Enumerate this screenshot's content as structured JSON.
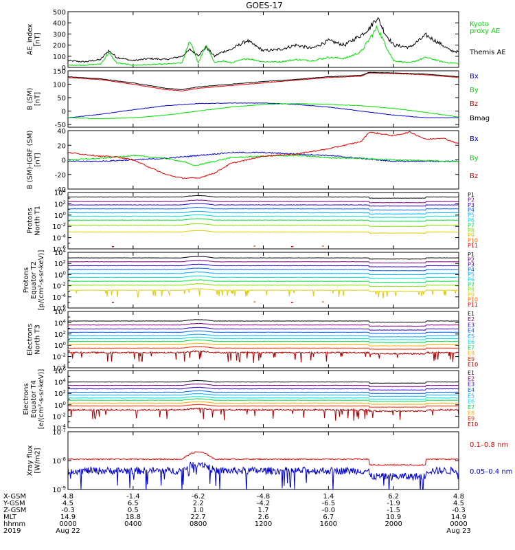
{
  "chart_data": {
    "title": "GOES-17",
    "colors": {
      "black": "#000000",
      "red": "#e00000",
      "green": "#00dd00",
      "blue": "#0000cc",
      "P": [
        "#000000",
        "#7a007a",
        "#2a00cc",
        "#0060ff",
        "#00aaff",
        "#00dddd",
        "#00dd44",
        "#88dd00",
        "#ddcc00",
        "#ff6600",
        "#cc0000"
      ],
      "E": [
        "#000000",
        "#7a007a",
        "#2a00cc",
        "#0060ff",
        "#00aaff",
        "#00dddd",
        "#00dd44",
        "#88dd00",
        "#ffaa00",
        "#ff2200",
        "#aa0000"
      ]
    },
    "panels": [
      {
        "id": "ae",
        "type": "line",
        "ylabel": [
          "AE_index",
          "[nT]"
        ],
        "scale": "linear",
        "ylim": [
          0,
          500
        ],
        "yticks": [
          "500",
          "400",
          "300",
          "200",
          "100",
          "0"
        ],
        "ytick_values": [
          500,
          400,
          300,
          200,
          100,
          0
        ],
        "legend": [
          "Kyoto",
          "proxy AE",
          "Themis AE"
        ],
        "series": [
          {
            "name": "Themis AE",
            "color": "black",
            "x": [
              0,
              1,
              2,
              2.5,
              3,
              4,
              5,
              6,
              7,
              7.5,
              8,
              8.5,
              9,
              9.5,
              10,
              11,
              12,
              13,
              14,
              15,
              16,
              17,
              18,
              18.5,
              19,
              19.5,
              20,
              21,
              22,
              23,
              23.5,
              24
            ],
            "y": [
              60,
              50,
              70,
              150,
              90,
              60,
              80,
              70,
              100,
              160,
              110,
              180,
              100,
              140,
              160,
              240,
              150,
              160,
              200,
              170,
              240,
              200,
              290,
              350,
              450,
              300,
              200,
              180,
              290,
              200,
              150,
              140
            ]
          },
          {
            "name": "Kyoto proxy AE",
            "color": "green",
            "x": [
              0,
              1,
              2,
              2.5,
              3,
              4,
              5,
              6,
              7,
              7.5,
              8,
              8.5,
              9,
              9.5,
              10,
              11,
              12,
              13,
              14,
              15,
              16,
              17,
              18,
              18.5,
              19,
              19.5,
              20,
              21,
              22,
              23,
              23.5,
              24
            ],
            "y": [
              20,
              20,
              30,
              130,
              40,
              20,
              25,
              30,
              40,
              240,
              40,
              200,
              40,
              60,
              40,
              80,
              50,
              50,
              70,
              60,
              90,
              80,
              140,
              250,
              360,
              200,
              60,
              40,
              90,
              50,
              40,
              35
            ]
          }
        ]
      },
      {
        "id": "bsm",
        "type": "line",
        "ylabel": [
          "B (SM)",
          "[nT]"
        ],
        "scale": "linear",
        "ylim": [
          -60,
          150
        ],
        "yticks": [
          "150",
          "100",
          "50",
          "0",
          "-50"
        ],
        "ytick_values": [
          150,
          100,
          50,
          0,
          -50
        ],
        "legend": [
          "Bx",
          "By",
          "Bz",
          "Bmag"
        ],
        "series": [
          {
            "name": "Bx",
            "color": "blue",
            "x": [
              0,
              2,
              4,
              6,
              8,
              10,
              12,
              14,
              16,
              18,
              20,
              22,
              24
            ],
            "y": [
              -25,
              -12,
              5,
              20,
              28,
              30,
              30,
              25,
              15,
              0,
              -15,
              -25,
              -25
            ]
          },
          {
            "name": "By",
            "color": "green",
            "x": [
              0,
              2,
              4,
              6,
              8,
              10,
              12,
              14,
              16,
              18,
              20,
              22,
              24
            ],
            "y": [
              -25,
              -28,
              -25,
              -15,
              0,
              15,
              25,
              28,
              25,
              20,
              10,
              -5,
              -22
            ]
          },
          {
            "name": "Bz",
            "color": "red",
            "x": [
              0,
              2,
              4,
              6,
              7,
              8,
              10,
              12,
              14,
              16,
              18,
              18.5,
              20,
              22,
              24
            ],
            "y": [
              125,
              117,
              100,
              80,
              75,
              85,
              95,
              105,
              115,
              125,
              130,
              142,
              140,
              135,
              125
            ]
          },
          {
            "name": "Bmag",
            "color": "black",
            "x": [
              0,
              2,
              4,
              6,
              7,
              8,
              10,
              12,
              14,
              16,
              18,
              18.5,
              20,
              22,
              24
            ],
            "y": [
              128,
              120,
              105,
              85,
              80,
              90,
              100,
              110,
              118,
              128,
              133,
              144,
              142,
              138,
              128
            ]
          }
        ]
      },
      {
        "id": "bdiff",
        "type": "line",
        "ylabel": [
          "B (SM)-IGRF (SM)",
          "[nT]"
        ],
        "scale": "linear",
        "ylim": [
          -40,
          40
        ],
        "yticks": [
          "40",
          "20",
          "0",
          "-20",
          "-40"
        ],
        "ytick_values": [
          40,
          20,
          0,
          -20,
          -40
        ],
        "legend": [
          "Bx",
          "By",
          "Bz"
        ],
        "series": [
          {
            "name": "Bx",
            "color": "blue",
            "x": [
              0,
              2,
              4,
              6,
              8,
              10,
              12,
              14,
              16,
              18,
              20,
              22,
              24
            ],
            "y": [
              -2,
              -2,
              0,
              2,
              6,
              10,
              10,
              8,
              6,
              2,
              -2,
              -2,
              -2
            ]
          },
          {
            "name": "By",
            "color": "green",
            "x": [
              0,
              2,
              4,
              6,
              7,
              7.8,
              9,
              10,
              12,
              14,
              16,
              18,
              20,
              22,
              24
            ],
            "y": [
              0,
              2,
              6,
              2,
              -2,
              -8,
              -2,
              3,
              5,
              6,
              3,
              2,
              0,
              -1,
              -2
            ]
          },
          {
            "name": "Bz",
            "color": "red",
            "x": [
              0,
              2,
              3,
              4,
              5,
              6,
              7,
              8,
              9,
              10,
              12,
              14,
              16,
              17,
              18,
              18.5,
              20,
              21,
              22,
              23,
              24
            ],
            "y": [
              10,
              5,
              4,
              0,
              -10,
              -20,
              -25,
              -25,
              -18,
              -5,
              5,
              8,
              15,
              20,
              25,
              38,
              33,
              38,
              28,
              30,
              22
            ]
          }
        ]
      },
      {
        "id": "pnorth",
        "type": "line",
        "ylabel": [
          "Protons",
          "North T1"
        ],
        "scale": "log",
        "ylim": [
          -6,
          4
        ],
        "yticks": [
          "10^4",
          "10^2",
          "10^0",
          "10^-2",
          "10^-4",
          "10^-6"
        ],
        "ytick_values": [
          4,
          2,
          0,
          -2,
          -4,
          -6
        ],
        "legend": [
          "P1",
          "P2",
          "P3",
          "P4",
          "P5",
          "P6",
          "P7",
          "P8",
          "P9",
          "P10",
          "P11"
        ],
        "series": [
          {
            "name": "P1",
            "color": "P0",
            "level": 3.2
          },
          {
            "name": "P2",
            "color": "P1",
            "level": 2.4
          },
          {
            "name": "P3",
            "color": "P2",
            "level": 1.8
          },
          {
            "name": "P4",
            "color": "P3",
            "level": 1.1
          },
          {
            "name": "P5",
            "color": "P4",
            "level": 0.4
          },
          {
            "name": "P6",
            "color": "P5",
            "level": -0.2
          },
          {
            "name": "P7",
            "color": "P6",
            "level": -0.9
          },
          {
            "name": "P8",
            "color": "P7",
            "level": -1.8
          },
          {
            "name": "P9",
            "color": "P8",
            "level": -3.0
          },
          {
            "name": "P10",
            "color": "P9",
            "level": -4.8,
            "sparse": true
          },
          {
            "name": "P11",
            "color": "P10",
            "level": -4.9,
            "sparse": true
          }
        ]
      },
      {
        "id": "peq",
        "type": "line",
        "ylabel": [
          "Protons",
          "Equator T2",
          "[p/(cm²-s-sr-keV)]"
        ],
        "scale": "log",
        "ylim": [
          -6,
          4
        ],
        "yticks": [
          "10^4",
          "10^2",
          "10^0",
          "10^-2",
          "10^-4",
          "10^-6"
        ],
        "ytick_values": [
          4,
          2,
          0,
          -2,
          -4,
          -6
        ],
        "legend": [
          "P1",
          "P2",
          "P3",
          "P4",
          "P5",
          "P6",
          "P7",
          "P8",
          "P9",
          "P10",
          "P11"
        ],
        "series": [
          {
            "name": "P1",
            "color": "P0",
            "level": 3.0
          },
          {
            "name": "P2",
            "color": "P1",
            "level": 2.3
          },
          {
            "name": "P3",
            "color": "P2",
            "level": 1.6
          },
          {
            "name": "P4",
            "color": "P3",
            "level": 0.9
          },
          {
            "name": "P5",
            "color": "P4",
            "level": 0.2
          },
          {
            "name": "P6",
            "color": "P5",
            "level": -0.5
          },
          {
            "name": "P7",
            "color": "P6",
            "level": -1.2
          },
          {
            "name": "P8",
            "color": "P7",
            "level": -1.9
          },
          {
            "name": "P9",
            "color": "P8",
            "level": -2.8
          },
          {
            "name": "P10",
            "color": "P9",
            "level": -4.5,
            "sparse": true
          },
          {
            "name": "P11",
            "color": "P10",
            "level": -4.6,
            "sparse": true
          }
        ]
      },
      {
        "id": "enorth",
        "type": "line",
        "ylabel": [
          "Electrons",
          "North T3"
        ],
        "scale": "log",
        "ylim": [
          -4,
          6
        ],
        "yticks": [
          "10^6",
          "10^4",
          "10^2",
          "10^0",
          "10^-2",
          "10^-4"
        ],
        "ytick_values": [
          6,
          4,
          2,
          0,
          -2,
          -4
        ],
        "legend": [
          "E1",
          "E2",
          "E3",
          "E4",
          "E5",
          "E6",
          "E7",
          "E8",
          "E9",
          "E10"
        ],
        "series": [
          {
            "name": "E1",
            "color": "E0",
            "level": 4.3
          },
          {
            "name": "E2",
            "color": "E1",
            "level": 3.6
          },
          {
            "name": "E3",
            "color": "E2",
            "level": 2.9
          },
          {
            "name": "E4",
            "color": "E3",
            "level": 2.3
          },
          {
            "name": "E5",
            "color": "E4",
            "level": 1.7
          },
          {
            "name": "E6",
            "color": "E5",
            "level": 1.2
          },
          {
            "name": "E7",
            "color": "E6",
            "level": 0.7
          },
          {
            "name": "E8",
            "color": "E8",
            "level": 0.1
          },
          {
            "name": "E9",
            "color": "E9",
            "level": -0.5
          },
          {
            "name": "E10",
            "color": "E10",
            "level": -1.3,
            "spiky": true
          }
        ]
      },
      {
        "id": "eeq",
        "type": "line",
        "ylabel": [
          "Electrons",
          "Equator T4",
          "[e/(cm²-s-sr-keV)]"
        ],
        "scale": "log",
        "ylim": [
          -4,
          6
        ],
        "yticks": [
          "10^6",
          "10^4",
          "10^2",
          "10^0",
          "10^-2",
          "10^-4"
        ],
        "ytick_values": [
          6,
          4,
          2,
          0,
          -2,
          -4
        ],
        "legend": [
          "E1",
          "E2",
          "E3",
          "E4",
          "E5",
          "E6",
          "E7",
          "E8",
          "E9",
          "E10"
        ],
        "series": [
          {
            "name": "E1",
            "color": "E0",
            "level": 4.0
          },
          {
            "name": "E2",
            "color": "E1",
            "level": 3.4
          },
          {
            "name": "E3",
            "color": "E2",
            "level": 2.8
          },
          {
            "name": "E4",
            "color": "E3",
            "level": 2.2
          },
          {
            "name": "E5",
            "color": "E4",
            "level": 1.7
          },
          {
            "name": "E6",
            "color": "E5",
            "level": 1.2
          },
          {
            "name": "E7",
            "color": "E6",
            "level": 0.8
          },
          {
            "name": "E8",
            "color": "E8",
            "level": 0.3
          },
          {
            "name": "E9",
            "color": "E9",
            "level": -0.2
          },
          {
            "name": "E10",
            "color": "E10",
            "level": -0.9,
            "spiky": true
          }
        ]
      },
      {
        "id": "xray",
        "type": "line",
        "ylabel": [
          "Xray flux",
          "[W/m2]"
        ],
        "scale": "log",
        "ylim": [
          -9,
          -7
        ],
        "yticks": [
          "10^-7",
          "10^-8",
          "10^-9"
        ],
        "ytick_values": [
          -7,
          -8,
          -9
        ],
        "legend": [
          "0.1–0.8 nm",
          "0.05–0.4 nm"
        ],
        "series": [
          {
            "name": "0.1–0.8 nm",
            "color": "red",
            "level": -7.95,
            "noise": 0.04
          },
          {
            "name": "0.05–0.4 nm",
            "color": "blue",
            "level": -8.35,
            "noise": 0.25
          }
        ]
      }
    ],
    "x_axis": {
      "ticks_hours": [
        0,
        4,
        8,
        12,
        16,
        20,
        24
      ],
      "rows": [
        {
          "label": "X-GSM",
          "values": [
            "4.8",
            "-1.4",
            "-6.2",
            "-4.8",
            "1.4",
            "6.2",
            "4.8"
          ]
        },
        {
          "label": "Y-GSM",
          "values": [
            "4.5",
            "6.5",
            "2.2",
            "-4.2",
            "-6.5",
            "-1.9",
            "4.5"
          ]
        },
        {
          "label": "Z-GSM",
          "values": [
            "-0.3",
            "0.5",
            "1.0",
            "1.7",
            "-0.0",
            "-1.5",
            "-0.3"
          ]
        },
        {
          "label": "MLT",
          "values": [
            "14.9",
            "18.8",
            "22.7",
            "2.6",
            "6.7",
            "10.9",
            "14.9"
          ]
        },
        {
          "label": "hhmm",
          "values": [
            "0000",
            "0400",
            "0800",
            "1200",
            "1600",
            "2000",
            "0000"
          ]
        },
        {
          "label": "2019",
          "values": [
            "Aug 22",
            "",
            "",
            "",
            "",
            "",
            "Aug 23"
          ]
        }
      ]
    }
  }
}
